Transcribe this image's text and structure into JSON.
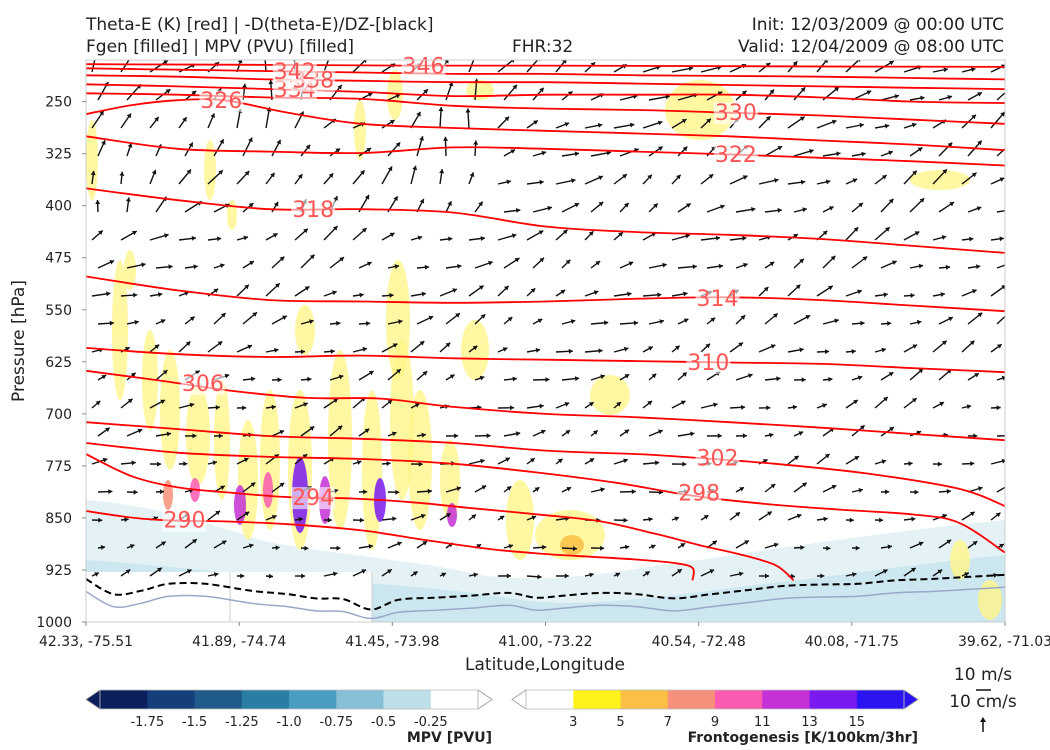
{
  "header": {
    "title_line1": "Theta-E (K) [red] | -D(theta-E)/DZ-[black]",
    "title_line2": "Fgen [filled] | MPV (PVU) [filled]",
    "fhr": "FHR:32",
    "init": "Init: 12/03/2009 @ 00:00 UTC",
    "valid": "Valid: 12/04/2009 @ 08:00 UTC"
  },
  "chart_data": {
    "type": "cross-section",
    "xlabel": "Latitude,Longitude",
    "ylabel": "Pressure [hPa]",
    "x_ticks": [
      "42.33, -75.51",
      "41.89, -74.74",
      "41.45, -73.98",
      "41.00, -73.22",
      "40.54, -72.48",
      "40.08, -71.75",
      "39.62, -71.03"
    ],
    "y_ticks": [
      250,
      325,
      400,
      475,
      550,
      625,
      700,
      775,
      850,
      925,
      1000
    ],
    "ylim": [
      1000,
      190
    ],
    "theta_e_contours": [
      {
        "value": 290,
        "label": "290",
        "points": [
          [
            0,
            840
          ],
          [
            0.03,
            846
          ],
          [
            0.06,
            851
          ],
          [
            0.1,
            854
          ],
          [
            0.15,
            855
          ],
          [
            0.22,
            859
          ],
          [
            0.3,
            868
          ],
          [
            0.37,
            882
          ],
          [
            0.44,
            895
          ],
          [
            0.5,
            902
          ],
          [
            0.55,
            906
          ],
          [
            0.6,
            910
          ],
          [
            0.64,
            915
          ],
          [
            0.66,
            922
          ],
          [
            0.66,
            940
          ]
        ]
      },
      {
        "value": 294,
        "label": "294",
        "points": [
          [
            0,
            758
          ],
          [
            0.05,
            790
          ],
          [
            0.1,
            806
          ],
          [
            0.16,
            814
          ],
          [
            0.22,
            820
          ],
          [
            0.29,
            822
          ],
          [
            0.36,
            828
          ],
          [
            0.42,
            836
          ],
          [
            0.5,
            846
          ],
          [
            0.56,
            855
          ],
          [
            0.62,
            873
          ],
          [
            0.67,
            890
          ],
          [
            0.71,
            902
          ],
          [
            0.75,
            918
          ],
          [
            0.77,
            940
          ]
        ]
      },
      {
        "value": 298,
        "label": "298",
        "points": [
          [
            0,
            742
          ],
          [
            0.1,
            756
          ],
          [
            0.2,
            762
          ],
          [
            0.3,
            765
          ],
          [
            0.4,
            772
          ],
          [
            0.5,
            786
          ],
          [
            0.58,
            800
          ],
          [
            0.66,
            818
          ],
          [
            0.74,
            830
          ],
          [
            0.82,
            838
          ],
          [
            0.9,
            845
          ],
          [
            0.95,
            857
          ],
          [
            1.0,
            900
          ]
        ]
      },
      {
        "value": 302,
        "label": "302",
        "points": [
          [
            0,
            712
          ],
          [
            0.1,
            722
          ],
          [
            0.2,
            732
          ],
          [
            0.3,
            736
          ],
          [
            0.4,
            742
          ],
          [
            0.5,
            753
          ],
          [
            0.6,
            758
          ],
          [
            0.65,
            762
          ],
          [
            0.75,
            772
          ],
          [
            0.85,
            786
          ],
          [
            0.95,
            808
          ],
          [
            1.0,
            833
          ]
        ]
      },
      {
        "value": 306,
        "label": "306",
        "points": [
          [
            0,
            638
          ],
          [
            0.08,
            652
          ],
          [
            0.16,
            667
          ],
          [
            0.24,
            677
          ],
          [
            0.32,
            678
          ],
          [
            0.4,
            690
          ],
          [
            0.5,
            700
          ],
          [
            0.6,
            705
          ],
          [
            0.7,
            712
          ],
          [
            0.8,
            720
          ],
          [
            0.9,
            729
          ],
          [
            1.0,
            738
          ]
        ]
      },
      {
        "value": 310,
        "label": "310",
        "points": [
          [
            0,
            605
          ],
          [
            0.1,
            614
          ],
          [
            0.2,
            618
          ],
          [
            0.3,
            616
          ],
          [
            0.4,
            620
          ],
          [
            0.5,
            622
          ],
          [
            0.6,
            624
          ],
          [
            0.7,
            626
          ],
          [
            0.8,
            628
          ],
          [
            0.9,
            634
          ],
          [
            1.0,
            640
          ]
        ]
      },
      {
        "value": 314,
        "label": "314",
        "points": [
          [
            0,
            502
          ],
          [
            0.1,
            522
          ],
          [
            0.2,
            536
          ],
          [
            0.3,
            538
          ],
          [
            0.4,
            540
          ],
          [
            0.5,
            538
          ],
          [
            0.6,
            534
          ],
          [
            0.7,
            532
          ],
          [
            0.8,
            536
          ],
          [
            0.9,
            544
          ],
          [
            1.0,
            552
          ]
        ]
      },
      {
        "value": 318,
        "label": "318",
        "points": [
          [
            0,
            375
          ],
          [
            0.1,
            392
          ],
          [
            0.2,
            405
          ],
          [
            0.3,
            405
          ],
          [
            0.4,
            410
          ],
          [
            0.5,
            430
          ],
          [
            0.6,
            438
          ],
          [
            0.7,
            442
          ],
          [
            0.8,
            448
          ],
          [
            0.9,
            458
          ],
          [
            1.0,
            468
          ]
        ]
      },
      {
        "value": 322,
        "label": "322",
        "points": [
          [
            0,
            300
          ],
          [
            0.1,
            318
          ],
          [
            0.2,
            322
          ],
          [
            0.3,
            324
          ],
          [
            0.4,
            316
          ],
          [
            0.5,
            318
          ],
          [
            0.6,
            322
          ],
          [
            0.7,
            326
          ],
          [
            0.8,
            331
          ],
          [
            0.9,
            336
          ],
          [
            1.0,
            342
          ]
        ]
      },
      {
        "value": 326,
        "label": "326",
        "points": [
          [
            0,
            268
          ],
          [
            0.05,
            255
          ],
          [
            0.1,
            248
          ],
          [
            0.15,
            248
          ],
          [
            0.22,
            266
          ],
          [
            0.3,
            282
          ],
          [
            0.4,
            288
          ],
          [
            0.5,
            292
          ],
          [
            0.6,
            296
          ],
          [
            0.7,
            300
          ],
          [
            0.8,
            306
          ],
          [
            0.9,
            312
          ],
          [
            1.0,
            320
          ]
        ]
      },
      {
        "value": 330,
        "label": "330",
        "points": [
          [
            0,
            238
          ],
          [
            0.1,
            240
          ],
          [
            0.2,
            244
          ],
          [
            0.3,
            246
          ],
          [
            0.4,
            256
          ],
          [
            0.5,
            260
          ],
          [
            0.6,
            262
          ],
          [
            0.7,
            266
          ],
          [
            0.8,
            270
          ],
          [
            0.9,
            276
          ],
          [
            1.0,
            282
          ]
        ]
      },
      {
        "value": 334,
        "label": "334",
        "points": [
          [
            0,
            225
          ],
          [
            0.1,
            228
          ],
          [
            0.2,
            232
          ],
          [
            0.3,
            236
          ],
          [
            0.4,
            242
          ],
          [
            0.5,
            240
          ],
          [
            0.6,
            240
          ],
          [
            0.7,
            240
          ],
          [
            0.8,
            244
          ],
          [
            0.9,
            250
          ],
          [
            1.0,
            252
          ]
        ]
      },
      {
        "value": 338,
        "label": "338",
        "points": [
          [
            0,
            212
          ],
          [
            0.1,
            214
          ],
          [
            0.2,
            218
          ],
          [
            0.3,
            220
          ],
          [
            0.4,
            222
          ],
          [
            0.5,
            222
          ],
          [
            0.6,
            224
          ],
          [
            0.7,
            226
          ],
          [
            0.8,
            228
          ],
          [
            0.9,
            230
          ],
          [
            1.0,
            232
          ]
        ]
      },
      {
        "value": 342,
        "label": "342",
        "points": [
          [
            0,
            202
          ],
          [
            0.1,
            204
          ],
          [
            0.2,
            206
          ],
          [
            0.3,
            208
          ],
          [
            0.4,
            210
          ],
          [
            0.5,
            210
          ],
          [
            0.6,
            212
          ],
          [
            0.7,
            213
          ],
          [
            0.8,
            214
          ],
          [
            0.9,
            216
          ],
          [
            1.0,
            218
          ]
        ]
      },
      {
        "value": 346,
        "label": "346",
        "points": [
          [
            0,
            196
          ],
          [
            0.2,
            197
          ],
          [
            0.35,
            198
          ],
          [
            0.5,
            198
          ],
          [
            0.7,
            199
          ],
          [
            1.0,
            200
          ]
        ]
      }
    ],
    "stability_contour": {
      "label": "-D(theta-E)/DZ",
      "points": [
        [
          0,
          938
        ],
        [
          0.03,
          960
        ],
        [
          0.06,
          955
        ],
        [
          0.09,
          945
        ],
        [
          0.13,
          945
        ],
        [
          0.18,
          955
        ],
        [
          0.22,
          960
        ],
        [
          0.25,
          966
        ],
        [
          0.28,
          967
        ],
        [
          0.31,
          982
        ],
        [
          0.34,
          968
        ],
        [
          0.38,
          965
        ],
        [
          0.42,
          962
        ],
        [
          0.46,
          958
        ],
        [
          0.49,
          965
        ],
        [
          0.52,
          962
        ],
        [
          0.56,
          958
        ],
        [
          0.6,
          960
        ],
        [
          0.64,
          966
        ],
        [
          0.68,
          960
        ],
        [
          0.72,
          954
        ],
        [
          0.76,
          948
        ],
        [
          0.8,
          946
        ],
        [
          0.84,
          945
        ],
        [
          0.88,
          940
        ],
        [
          0.92,
          938
        ],
        [
          0.96,
          935
        ],
        [
          1.0,
          932
        ]
      ]
    },
    "mpv_colorbar": {
      "title": "MPV [PVU]",
      "ticks": [
        "-1.75",
        "-1.5",
        "-1.25",
        "-1.0",
        "-0.75",
        "-0.5",
        "-0.25"
      ],
      "colors": [
        "#0b1f5c",
        "#143f7a",
        "#1f5a8a",
        "#2a7ea3",
        "#4a9cc0",
        "#87c0d6",
        "#bfdfe8",
        "#ffffff"
      ]
    },
    "fgen_colorbar": {
      "title": "Frontogenesis [K/100km/3hr]",
      "ticks": [
        "3",
        "5",
        "7",
        "9",
        "11",
        "13",
        "15"
      ],
      "colors": [
        "#ffffff",
        "#fff31a",
        "#fbbf45",
        "#f7907a",
        "#fa5bb0",
        "#c431d6",
        "#7a1af2",
        "#2a14f2"
      ]
    },
    "reference_vectors": {
      "horizontal": "10 m/s",
      "vertical": "10 cm/s"
    },
    "colors": {
      "theta_e": "#ff0000",
      "theta_e_label": "#ff5555",
      "stability": "#000000",
      "vectors": "#111111"
    }
  }
}
